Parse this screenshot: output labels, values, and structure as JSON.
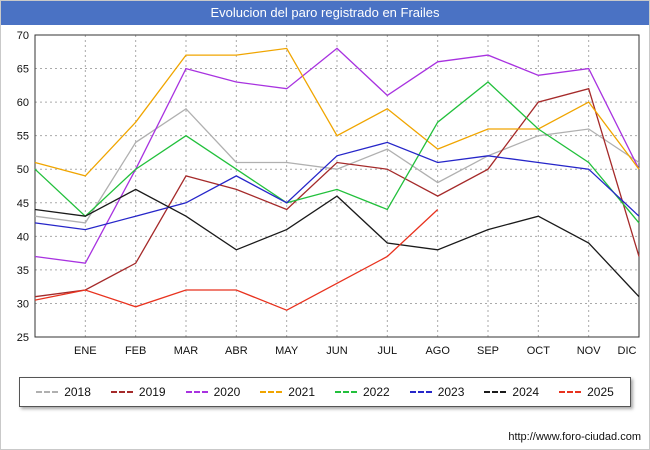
{
  "title_bar": {
    "bg_color": "#4a72c4",
    "text_color": "#ffffff"
  },
  "footer": {
    "url": "http://www.foro-ciudad.com"
  },
  "chart_data": {
    "type": "line",
    "title": "Evolucion del paro registrado en Frailes",
    "categories": [
      "",
      "ENE",
      "FEB",
      "MAR",
      "ABR",
      "MAY",
      "JUN",
      "JUL",
      "AGO",
      "SEP",
      "OCT",
      "NOV",
      "DIC"
    ],
    "ylim": [
      25,
      70
    ],
    "ytick_step": 5,
    "grid": true,
    "legend_position": "bottom",
    "series": [
      {
        "name": "2018",
        "color": "#b0b0b0",
        "values": [
          43,
          42,
          54,
          59,
          51,
          51,
          50,
          53,
          48,
          52,
          55,
          56,
          51
        ]
      },
      {
        "name": "2019",
        "color": "#a52a2a",
        "values": [
          31,
          32,
          36,
          49,
          47,
          44,
          51,
          50,
          46,
          50,
          60,
          62,
          37
        ]
      },
      {
        "name": "2020",
        "color": "#a832e0",
        "values": [
          37,
          36,
          50,
          65,
          63,
          62,
          68,
          61,
          66,
          67,
          64,
          65,
          50
        ]
      },
      {
        "name": "2021",
        "color": "#f0a500",
        "values": [
          51,
          49,
          57,
          67,
          67,
          68,
          55,
          59,
          53,
          56,
          56,
          60,
          50
        ]
      },
      {
        "name": "2022",
        "color": "#22c03c",
        "values": [
          50,
          43,
          50,
          55,
          50,
          45,
          47,
          44,
          57,
          63,
          56,
          51,
          42
        ]
      },
      {
        "name": "2023",
        "color": "#2626c9",
        "values": [
          42,
          41,
          43,
          45,
          49,
          45,
          52,
          54,
          51,
          52,
          51,
          50,
          43
        ]
      },
      {
        "name": "2024",
        "color": "#1a1a1a",
        "values": [
          44,
          43,
          47,
          43,
          38,
          41,
          46,
          39,
          38,
          41,
          43,
          39,
          31
        ]
      },
      {
        "name": "2025",
        "color": "#e8321e",
        "values": [
          30.5,
          32,
          29.5,
          32,
          32,
          29,
          33,
          37,
          44,
          null,
          null,
          null,
          null
        ]
      }
    ]
  }
}
